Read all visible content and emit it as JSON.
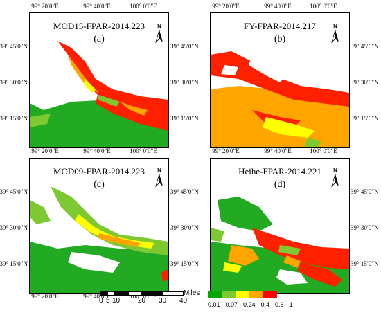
{
  "panels": [
    {
      "title": "MOD15-FPAR-2014.223",
      "label": "(a)"
    },
    {
      "title": "FY-FPAR-2014.217",
      "label": "(b)"
    },
    {
      "title": "MOD09-FPAR-2014.223",
      "label": "(c)"
    },
    {
      "title": "Heihe-FPAR-2014.221",
      "label": "(d)"
    }
  ],
  "north_label": "N",
  "lon_ticks": [
    "99° 20′0″E",
    "99° 40′0″E",
    "100° 0′0″E"
  ],
  "lat_ticks": [
    "39° 45′0″N",
    "39° 30′0″N",
    "39° 15′0″N"
  ],
  "scale_bar": {
    "unit": "Miles",
    "labels": [
      "0",
      "5",
      "10",
      "20",
      "30",
      "40"
    ]
  },
  "legend": {
    "label": "0.01 - 0.07 - 0.24 - 0.4 - 0.6 - 1",
    "colors": [
      "#00a800",
      "#7ec832",
      "#ffff00",
      "#ffa500",
      "#ff0000"
    ]
  },
  "colors": {
    "green": "#22aa22",
    "light_green": "#7ec832",
    "yellow": "#ffff00",
    "orange": "#ffa500",
    "red": "#ff0000"
  }
}
